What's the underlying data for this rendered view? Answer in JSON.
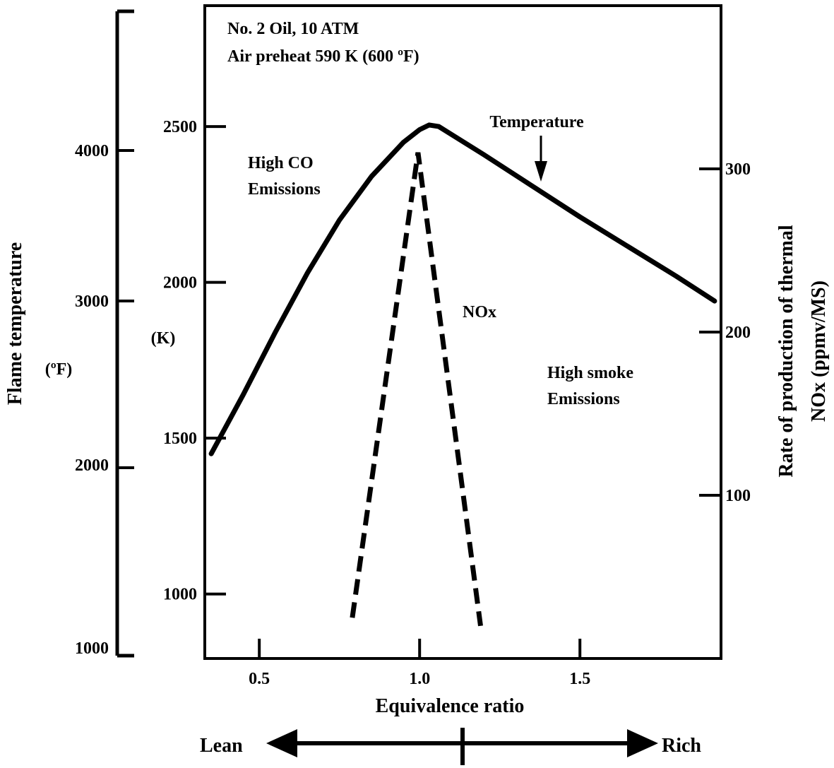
{
  "chart_data": {
    "type": "line",
    "annotations": {
      "condition_line1": "No. 2 Oil, 10 ATM",
      "condition_line2": "Air preheat 590 K (600 ºF)",
      "high_co_line1": "High CO",
      "high_co_line2": "Emissions",
      "high_smoke_line1": "High smoke",
      "high_smoke_line2": "Emissions",
      "temperature_label": "Temperature",
      "nox_label": "NOx"
    },
    "x_axis": {
      "label": "Equivalence ratio",
      "range": [
        0.33,
        1.94
      ],
      "ticks": [
        0.5,
        1.0,
        1.5
      ],
      "tick_labels": [
        "0.5",
        "1.0",
        "1.5"
      ]
    },
    "y_axis_kelvin": {
      "unit_label": "(K)",
      "range": [
        793,
        2888
      ],
      "ticks": [
        1000,
        1500,
        2000,
        2500
      ],
      "tick_labels": [
        "1000",
        "1500",
        "2000",
        "2500"
      ]
    },
    "y_axis_fahrenheit": {
      "label": "Flame temperature",
      "unit_label": "(ºF)",
      "ticks": [
        1000,
        2000,
        3000,
        4000
      ],
      "tick_labels": [
        "1000",
        "2000",
        "3000",
        "4000"
      ]
    },
    "y_axis_nox": {
      "label_line1": "Rate of production of thermal",
      "label_line2": "NOx (ppmv/MS)",
      "range": [
        0,
        400
      ],
      "ticks": [
        100,
        200,
        300
      ],
      "tick_labels": [
        "100",
        "200",
        "300"
      ]
    },
    "regime_arrow": {
      "lean_label": "Lean",
      "rich_label": "Rich"
    },
    "series": [
      {
        "id": "temperature",
        "style": "solid",
        "x": [
          0.35,
          0.45,
          0.55,
          0.65,
          0.75,
          0.85,
          0.95,
          1.0,
          1.03,
          1.06,
          1.2,
          1.35,
          1.5,
          1.65,
          1.8,
          1.92
        ],
        "y": [
          1450,
          1640,
          1840,
          2030,
          2200,
          2340,
          2450,
          2490,
          2505,
          2500,
          2410,
          2310,
          2210,
          2115,
          2020,
          1940
        ]
      },
      {
        "id": "nox",
        "style": "dashed",
        "x": [
          0.79,
          0.995,
          1.19
        ],
        "y": [
          25,
          310,
          20
        ]
      }
    ]
  }
}
